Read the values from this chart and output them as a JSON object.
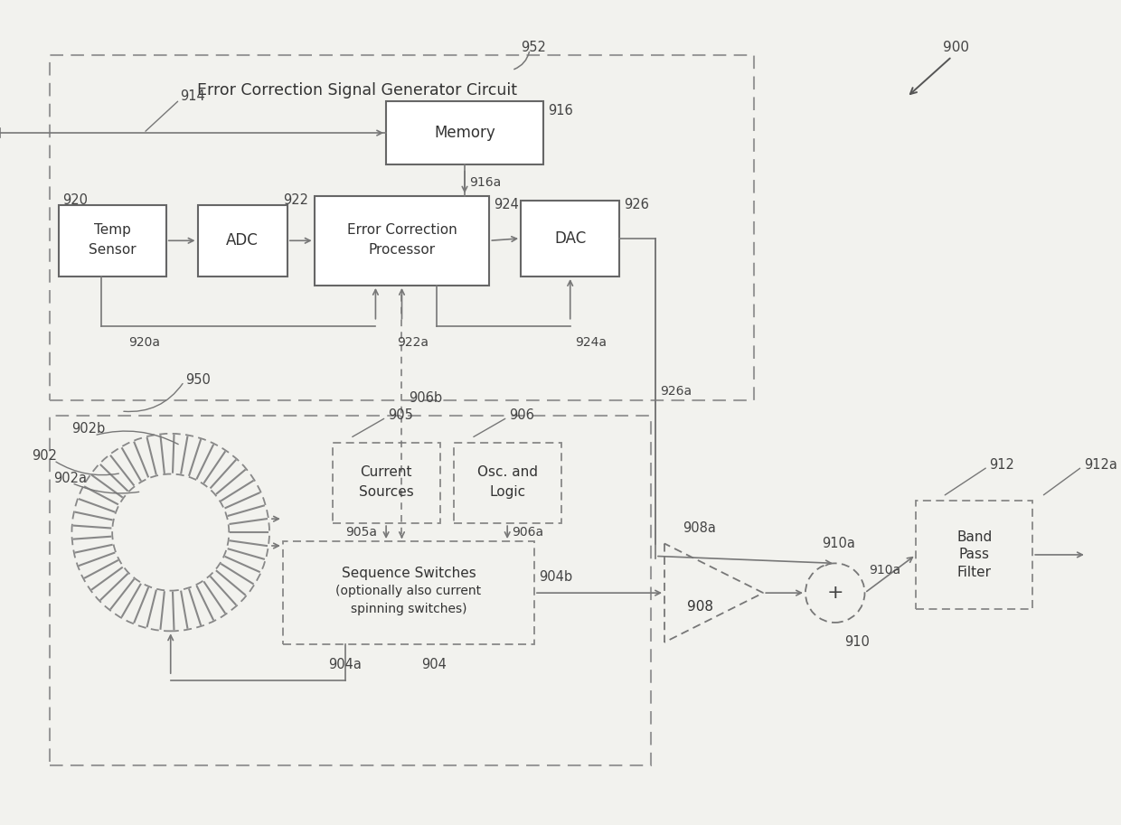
{
  "fig_width": 12.4,
  "fig_height": 9.13,
  "bg_color": "#f2f2ee",
  "lc": "#777777",
  "title": "Error Correction Signal Generator Circuit",
  "labels": {
    "952": "952",
    "900": "900",
    "950": "950",
    "914": "914",
    "916": "916",
    "916a": "916a",
    "920": "920",
    "920a": "920a",
    "922": "922",
    "922a": "922a",
    "924": "924",
    "924a": "924a",
    "926": "926",
    "926a": "926a",
    "902": "902",
    "902a": "902a",
    "902b": "902b",
    "904": "904",
    "904a": "904a",
    "904b": "904b",
    "905": "905",
    "905a": "905a",
    "906": "906",
    "906a": "906a",
    "906b": "906b",
    "908": "908",
    "908a": "908a",
    "910": "910",
    "910a": "910a",
    "912": "912",
    "912a": "912a"
  }
}
